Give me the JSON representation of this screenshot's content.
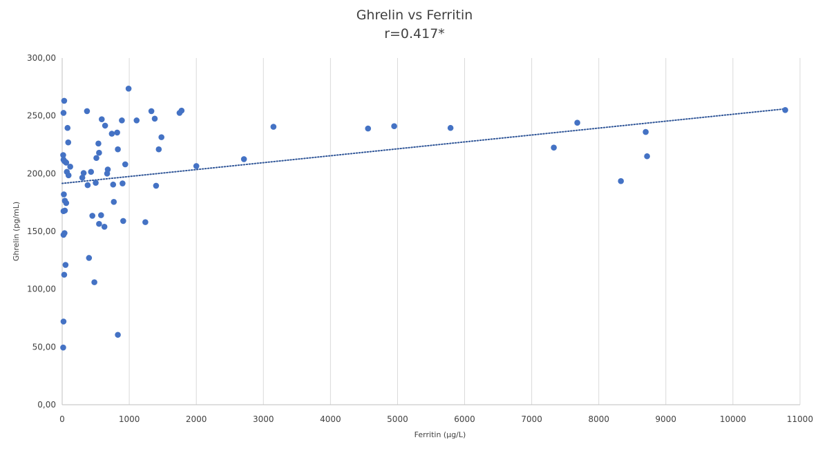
{
  "chart_data": {
    "type": "scatter",
    "title": "Ghrelin vs Ferritin",
    "subtitle": "r=0.417*",
    "xlabel": "Ferritin (µg/L)",
    "ylabel": "Ghrelin (pg/mL)",
    "xlim": [
      0,
      11000
    ],
    "ylim": [
      0,
      300
    ],
    "x_ticks": [
      "0",
      "1000",
      "2000",
      "3000",
      "4000",
      "5000",
      "6000",
      "7000",
      "8000",
      "9000",
      "10000",
      "11000"
    ],
    "y_ticks": [
      "0,00",
      "50,00",
      "100,00",
      "150,00",
      "200,00",
      "250,00",
      "300,00"
    ],
    "grid": "vertical",
    "legend": "none",
    "colors": {
      "points": "#4472c4",
      "trendline": "#2f5597"
    },
    "trendline": {
      "style": "dotted",
      "x": [
        0,
        10780
      ],
      "y": [
        191.5,
        256
      ]
    },
    "series": [
      {
        "points": [
          [
            20,
            252.5
          ],
          [
            30,
            263
          ],
          [
            15,
            216
          ],
          [
            20,
            212
          ],
          [
            30,
            211
          ],
          [
            50,
            210
          ],
          [
            60,
            209.5
          ],
          [
            80,
            239.5
          ],
          [
            90,
            227
          ],
          [
            70,
            201.5
          ],
          [
            95,
            198.5
          ],
          [
            120,
            206
          ],
          [
            25,
            182
          ],
          [
            40,
            176.5
          ],
          [
            60,
            174.5
          ],
          [
            20,
            167.5
          ],
          [
            40,
            168
          ],
          [
            20,
            147
          ],
          [
            35,
            148.5
          ],
          [
            50,
            121
          ],
          [
            30,
            112.5
          ],
          [
            20,
            72
          ],
          [
            15,
            49.5
          ],
          [
            370,
            254
          ],
          [
            300,
            196.5
          ],
          [
            320,
            200.5
          ],
          [
            380,
            190
          ],
          [
            430,
            201.5
          ],
          [
            450,
            163.5
          ],
          [
            400,
            127
          ],
          [
            480,
            106
          ],
          [
            500,
            192
          ],
          [
            510,
            213.5
          ],
          [
            540,
            226
          ],
          [
            550,
            218
          ],
          [
            550,
            156.5
          ],
          [
            580,
            164
          ],
          [
            590,
            247
          ],
          [
            630,
            154
          ],
          [
            640,
            241.5
          ],
          [
            670,
            200
          ],
          [
            680,
            203.5
          ],
          [
            740,
            234.5
          ],
          [
            760,
            190.5
          ],
          [
            770,
            175.5
          ],
          [
            820,
            235.5
          ],
          [
            830,
            221
          ],
          [
            830,
            60.5
          ],
          [
            890,
            246
          ],
          [
            900,
            191.5
          ],
          [
            910,
            159
          ],
          [
            940,
            208
          ],
          [
            990,
            273.5
          ],
          [
            1110,
            246
          ],
          [
            1240,
            158
          ],
          [
            1330,
            254
          ],
          [
            1380,
            247.5
          ],
          [
            1400,
            189.5
          ],
          [
            1440,
            221
          ],
          [
            1480,
            231.5
          ],
          [
            1750,
            252.5
          ],
          [
            1780,
            254.5
          ],
          [
            2000,
            206.5
          ],
          [
            2710,
            212.5
          ],
          [
            3150,
            240.5
          ],
          [
            4560,
            239
          ],
          [
            4950,
            241
          ],
          [
            5790,
            239.5
          ],
          [
            7330,
            222.5
          ],
          [
            7680,
            244
          ],
          [
            8330,
            193.5
          ],
          [
            8700,
            236
          ],
          [
            8720,
            215
          ],
          [
            10780,
            255
          ]
        ]
      }
    ]
  }
}
